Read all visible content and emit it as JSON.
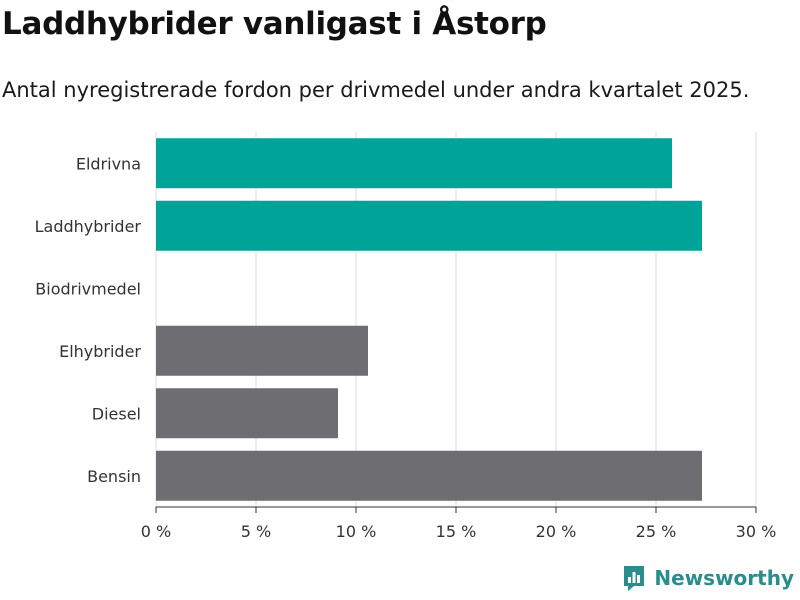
{
  "header": {
    "title": "Laddhybrider vanligast i Åstorp",
    "subtitle": "Antal nyregistrerade fordon per drivmedel under andra kvartalet 2025."
  },
  "brand": {
    "name": "Newsworthy",
    "icon": "newsworthy-logo-icon",
    "color": "#2a8c8c"
  },
  "chart_data": {
    "type": "bar",
    "orientation": "horizontal",
    "categories": [
      "Eldrivna",
      "Laddhybrider",
      "Biodrivmedel",
      "Elhybrider",
      "Diesel",
      "Bensin"
    ],
    "values": [
      25.8,
      27.3,
      0,
      10.6,
      9.1,
      27.3
    ],
    "colors": [
      "#00a398",
      "#00a398",
      "#00a398",
      "#6d6d72",
      "#6d6d72",
      "#6d6d72"
    ],
    "xlim": [
      0,
      30
    ],
    "xticks": [
      0,
      5,
      10,
      15,
      20,
      25,
      30
    ],
    "xtick_labels": [
      "0 %",
      "5 %",
      "10 %",
      "15 %",
      "20 %",
      "25 %",
      "30 %"
    ],
    "grid": true
  }
}
